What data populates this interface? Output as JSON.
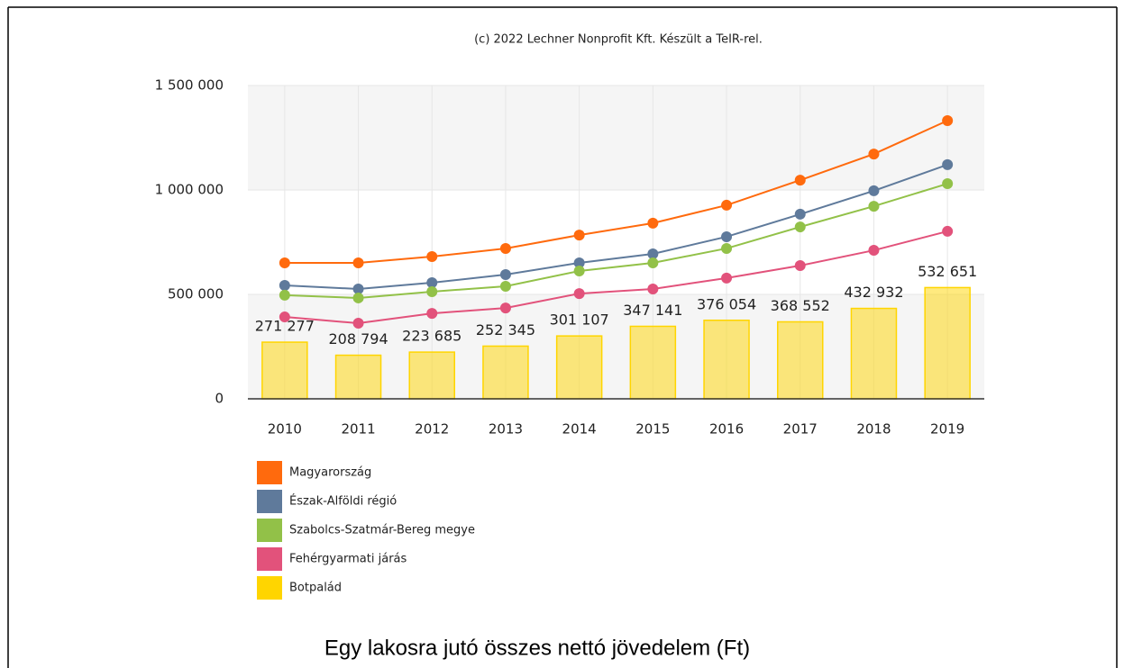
{
  "chart_data": {
    "type": "combo",
    "title": "Egy lakosra jutó összes nettó jövedelem (Ft)",
    "subtitle": "(c) 2022 Lechner Nonprofit Kft. Készült a TeIR-rel.",
    "categories": [
      "2010",
      "2011",
      "2012",
      "2013",
      "2014",
      "2015",
      "2016",
      "2017",
      "2018",
      "2019"
    ],
    "ylim": [
      0,
      1500000
    ],
    "yticks": [
      0,
      {
        "value": 500000,
        "label": "500 000"
      },
      {
        "value": 1000000,
        "label": "1 000 000"
      },
      {
        "value": 1500000,
        "label": "1 500 000"
      }
    ],
    "grid": true,
    "legend": "bottom-left",
    "series": [
      {
        "name": "Magyarország",
        "type": "line",
        "color": "#ff6a0d",
        "values": [
          651000,
          651000,
          681000,
          720000,
          784000,
          841000,
          927000,
          1047000,
          1172000,
          1332000
        ]
      },
      {
        "name": "Észak-Alföldi régió",
        "type": "line",
        "color": "#5f7a9b",
        "values": [
          543000,
          526000,
          556000,
          595000,
          651000,
          694000,
          776000,
          884000,
          996000,
          1121000
        ]
      },
      {
        "name": "Szabolcs-Szatmár-Bereg megye",
        "type": "line",
        "color": "#92c148",
        "values": [
          496000,
          483000,
          513000,
          539000,
          612000,
          651000,
          720000,
          823000,
          922000,
          1030000
        ]
      },
      {
        "name": "Fehérgyarmati járás",
        "type": "line",
        "color": "#e2527b",
        "values": [
          392000,
          362000,
          409000,
          435000,
          504000,
          526000,
          578000,
          638000,
          711000,
          802000
        ]
      },
      {
        "name": "Botpalád",
        "type": "bar",
        "color": "#ffd500",
        "values": [
          271277,
          208794,
          223685,
          252345,
          301107,
          347141,
          376054,
          368552,
          432932,
          532651
        ],
        "value_labels": [
          "271 277",
          "208 794",
          "223 685",
          "252 345",
          "301 107",
          "347 141",
          "376 054",
          "368 552",
          "432 932",
          "532 651"
        ]
      }
    ]
  }
}
